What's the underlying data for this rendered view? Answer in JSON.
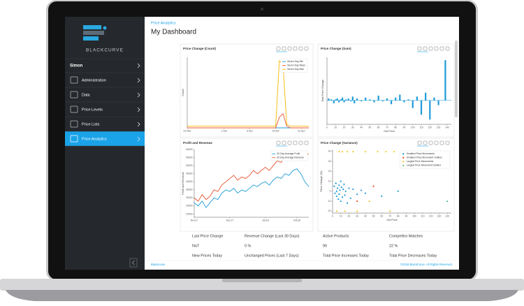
{
  "sidebar": {
    "brand": "BLACKCURVE",
    "user": "Simon",
    "menu": [
      "Administration",
      "Data",
      "Price Levels",
      "Price Lists",
      "Price Analytics"
    ],
    "active": 4
  },
  "header": {
    "breadcrumb": "Price Analytics",
    "title": "My Dashboard"
  },
  "dashboard": {
    "charts": [
      {
        "type": "line",
        "title": "Price Change (Count)",
        "ylabel": "Count",
        "categories": [
          "22 Mar",
          null,
          null,
          null,
          null,
          null,
          null,
          null,
          null,
          null,
          "1 Apr",
          null,
          null,
          null,
          null,
          null,
          null,
          "8 Apr",
          null,
          null,
          null,
          null,
          null,
          null,
          "15 Apr",
          null,
          null,
          null,
          null,
          null,
          null,
          "22 Apr",
          null,
          null
        ],
        "ylim": [
          0,
          40
        ],
        "legend": "top-right",
        "series": [
          {
            "name": "Seven Day Min",
            "color": "#1f9bd7",
            "values": [
              0,
              0,
              0,
              0,
              0,
              0,
              0,
              0,
              0,
              0,
              0,
              0,
              0,
              0,
              0,
              0,
              0,
              0,
              0,
              0,
              0,
              0,
              0,
              0,
              0,
              0,
              0,
              0,
              0,
              0,
              0,
              0,
              0,
              0
            ]
          },
          {
            "name": "Seven Day Mean",
            "color": "#e8532f",
            "values": [
              0,
              0,
              0,
              0,
              0,
              0,
              0,
              0,
              0,
              0,
              0,
              0,
              0,
              0,
              0,
              0,
              0,
              0,
              0,
              0,
              0,
              0,
              0,
              0,
              0,
              6,
              8,
              1,
              0,
              0,
              0,
              0,
              0,
              0
            ]
          },
          {
            "name": "Seven Day Max",
            "color": "#f5b800",
            "values": [
              1,
              1,
              1,
              1,
              1,
              1,
              1,
              1,
              1,
              1,
              1,
              1,
              1,
              1,
              1,
              1,
              1,
              1,
              1,
              1,
              1,
              1,
              1,
              1,
              1,
              38,
              36,
              2,
              1,
              1,
              1,
              1,
              1,
              1
            ]
          }
        ]
      },
      {
        "type": "bar",
        "title": "Price Change (Sum)",
        "xlabel": "Old Price",
        "ylabel": "Total Price Change",
        "color": "#1f9bd7",
        "xlim": [
          0,
          145
        ],
        "ylim": [
          -25,
          45
        ],
        "xticks": [
          0,
          10,
          20,
          30,
          40,
          50,
          60,
          70,
          80,
          90,
          100,
          110,
          120,
          130,
          140
        ],
        "x": [
          2,
          5,
          8,
          10,
          12,
          14,
          16,
          18,
          20,
          22,
          25,
          28,
          30,
          32,
          35,
          40,
          45,
          50,
          55,
          60,
          65,
          70,
          75,
          80,
          85,
          90,
          95,
          100,
          105,
          110,
          115,
          120,
          125,
          130,
          138
        ],
        "values": [
          2,
          1,
          -3,
          1,
          2,
          -2,
          1,
          3,
          -2,
          1,
          2,
          -1,
          4,
          -3,
          2,
          -1,
          3,
          1,
          -2,
          5,
          -1,
          2,
          -4,
          3,
          6,
          -2,
          1,
          -8,
          4,
          -15,
          8,
          -20,
          3,
          -5,
          42
        ]
      },
      {
        "type": "line",
        "title": "Profit and Revenue",
        "ylabel": "Profit and Revenue",
        "categories": [
          "Nov17",
          null,
          null,
          null,
          null,
          null,
          null,
          null,
          null,
          "Dec17",
          null,
          null,
          null,
          null,
          null,
          null,
          null,
          null,
          "Jan18",
          null,
          null,
          null,
          null,
          null,
          null,
          null,
          "Feb18",
          null,
          null,
          null
        ],
        "ylim": [
          18000,
          60000
        ],
        "yticks": [
          20000,
          25000,
          30000,
          35000,
          40000,
          45000,
          50000,
          55000,
          60000
        ],
        "legend": "top-right",
        "series": [
          {
            "name": "30 Day Average Profit",
            "color": "#1f9bd7",
            "values": [
              27000,
              25000,
              28000,
              24000,
              27000,
              30000,
              29000,
              33000,
              35000,
              34000,
              36000,
              33000,
              35000,
              34000,
              36000,
              38000,
              37000,
              39000,
              40000,
              38000,
              41000,
              43000,
              42000,
              45000,
              44000,
              47000,
              48000,
              45000,
              40000,
              37000
            ]
          },
          {
            "name": "30 Day Average Revenue",
            "color": "#e8532f",
            "values": [
              30000,
              28000,
              32000,
              29000,
              31000,
              35000,
              34000,
              38000,
              40000,
              42000,
              44000,
              41000,
              43000,
              42000,
              44000,
              47000,
              45000,
              47000,
              49000,
              47000,
              50000,
              53000,
              52000,
              56000,
              55000,
              58000,
              59000,
              56000,
              58000,
              57000
            ]
          }
        ]
      },
      {
        "type": "scatter",
        "title": "Price Change (Variance)",
        "xlabel": "Old Price",
        "ylabel": "Price Change (%)",
        "xlim": [
          0,
          145
        ],
        "ylim": [
          -22,
          42
        ],
        "xticks": [
          0,
          10,
          20,
          30,
          40,
          50,
          60,
          70,
          80,
          90,
          100,
          110,
          120,
          130,
          140
        ],
        "yticks": [
          -20,
          -10,
          0,
          10,
          20,
          30,
          40
        ],
        "legend": "top-right",
        "series": [
          {
            "name": "Smallest Price Movements",
            "color": "#1f9bd7",
            "marker": "circle",
            "x": [
              2,
              3,
              4,
              5,
              5,
              6,
              7,
              8,
              8,
              9,
              10,
              10,
              11,
              12,
              13,
              14,
              15,
              16,
              18,
              20,
              22,
              25,
              30,
              35,
              40,
              60,
              80
            ],
            "values": [
              5,
              -2,
              8,
              -5,
              0,
              3,
              -8,
              6,
              -3,
              1,
              10,
              -10,
              4,
              -6,
              2,
              7,
              -4,
              0,
              -12,
              3,
              -7,
              2,
              -3,
              1,
              -2,
              -5,
              0
            ]
          },
          {
            "name": "Smallest Price Movement Outliers",
            "color": "#e8532f",
            "marker": "circle",
            "x": [
              30,
              50
            ],
            "values": [
              -10,
              5
            ]
          },
          {
            "name": "Largest Price Movements",
            "color": "#f5b800",
            "marker": "triangle",
            "x": [
              8,
              12,
              18,
              25,
              40,
              55,
              65,
              75,
              5,
              15,
              30,
              45,
              70
            ],
            "values": [
              40,
              40,
              40,
              40,
              40,
              40,
              40,
              40,
              -20,
              -20,
              -20,
              -10,
              -20
            ]
          },
          {
            "name": "Largest Price Movement Outliers",
            "color": "#3cb371",
            "marker": "triangle",
            "x": [
              140
            ],
            "values": [
              -10
            ]
          }
        ]
      }
    ],
    "stats": [
      [
        "Last Price Change",
        "Revenue Change (Last 30 Days)",
        "Active Products",
        "Competitor Matches"
      ],
      [
        "NaT",
        "0 %",
        "90",
        "22 %"
      ],
      [
        "New Prices Today",
        "Unchanged Prices (Last 7 Days)",
        "Total Price Increases Today",
        "Total Price Decreases Today"
      ]
    ]
  },
  "footer": {
    "left": "Blackcurve",
    "right": "©2018 BlackCurve. All Rights Reserved."
  }
}
